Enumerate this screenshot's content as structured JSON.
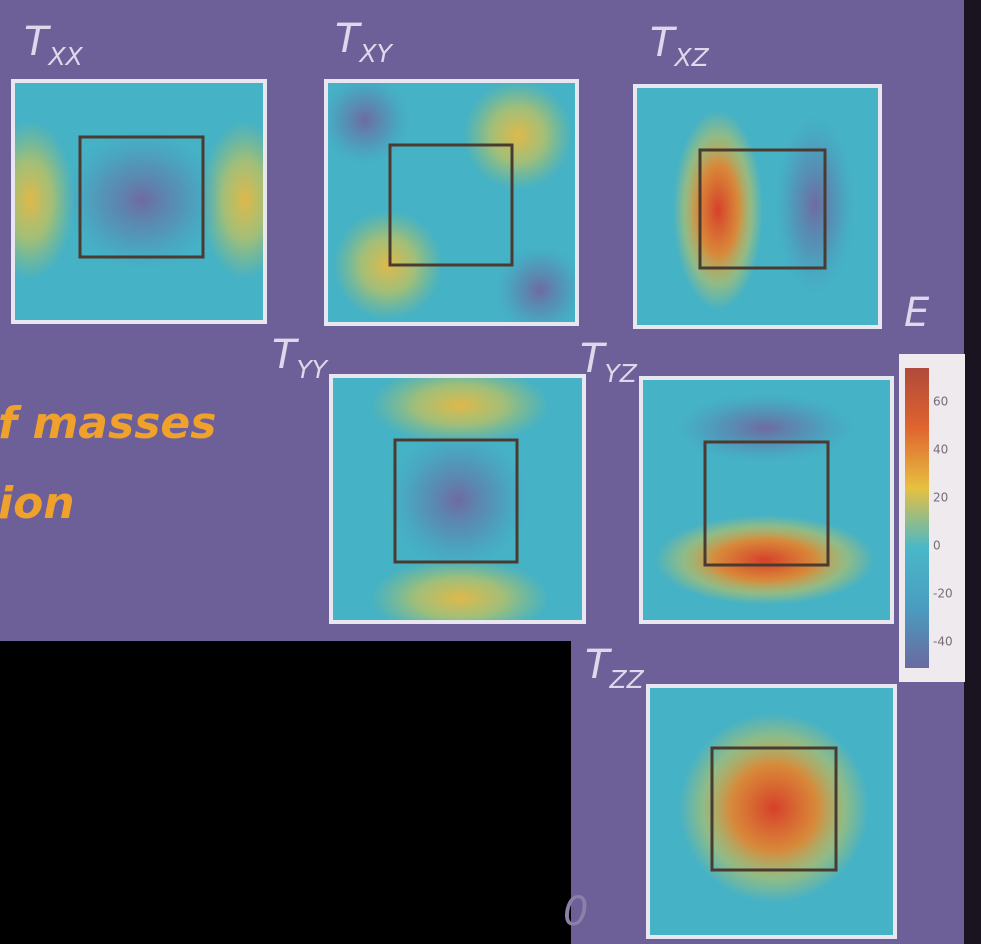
{
  "slide_text": [
    "f masses",
    "ion",
    "0"
  ],
  "panels": [
    {
      "main": "T",
      "sub": "XX"
    },
    {
      "main": "T",
      "sub": "XY"
    },
    {
      "main": "T",
      "sub": "XZ"
    },
    {
      "main": "T",
      "sub": "YY"
    },
    {
      "main": "T",
      "sub": "YZ"
    },
    {
      "main": "T",
      "sub": "ZZ"
    }
  ],
  "colorbar": {
    "title": "E",
    "ticks": [
      "60",
      "40",
      "20",
      "0",
      "-20",
      "-40"
    ]
  }
}
